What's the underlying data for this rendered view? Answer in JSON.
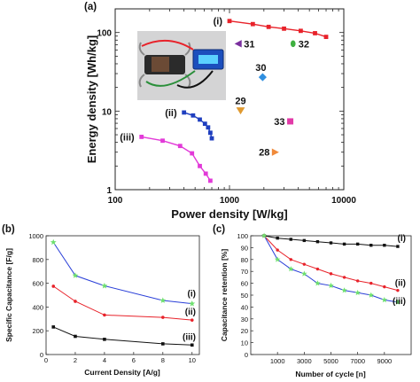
{
  "chart_data": [
    {
      "panel": "(a)",
      "type": "scatter",
      "xlabel": "Power density [W/kg]",
      "ylabel": "Energy density [Wh/kg]",
      "xscale": "log",
      "yscale": "log",
      "xlim": [
        100,
        10000
      ],
      "ylim": [
        1,
        200
      ],
      "xticks": [
        "100",
        "1000",
        "10000"
      ],
      "yticks": [
        "1",
        "10",
        "100"
      ],
      "colors": {
        "i": "#e8222a",
        "ii": "#1f3fbf",
        "iii": "#e23ad8"
      },
      "series": [
        {
          "name": "(i)",
          "color": "#e8222a",
          "marker": "square",
          "x": [
            1000,
            1600,
            2200,
            3000,
            4200,
            5600,
            7000
          ],
          "y": [
            140,
            128,
            118,
            112,
            105,
            98,
            88
          ]
        },
        {
          "name": "(ii)",
          "color": "#1f3fbf",
          "marker": "square",
          "x": [
            400,
            480,
            550,
            610,
            650,
            680,
            700
          ],
          "y": [
            9.6,
            8.8,
            7.8,
            6.9,
            6.2,
            5.3,
            4.5
          ]
        },
        {
          "name": "(iii)",
          "color": "#e23ad8",
          "marker": "square",
          "x": [
            170,
            260,
            370,
            470,
            550,
            620,
            680
          ],
          "y": [
            4.7,
            4.2,
            3.6,
            2.9,
            2.0,
            1.6,
            1.3
          ]
        }
      ],
      "references": [
        {
          "label": "31",
          "x": 1200,
          "y": 72,
          "marker": "triangle-left",
          "color": "#7a2f9e"
        },
        {
          "label": "32",
          "x": 3600,
          "y": 72,
          "marker": "ellipse",
          "color": "#3fb040"
        },
        {
          "label": "30",
          "x": 1950,
          "y": 27,
          "marker": "diamond",
          "color": "#2f8fe0"
        },
        {
          "label": "29",
          "x": 1250,
          "y": 10.2,
          "marker": "triangle-down",
          "color": "#e09a30"
        },
        {
          "label": "33",
          "x": 3400,
          "y": 7.4,
          "marker": "square",
          "color": "#e23aa8"
        },
        {
          "label": "28",
          "x": 2500,
          "y": 3.0,
          "marker": "triangle-right",
          "color": "#f08a3a"
        }
      ]
    },
    {
      "panel": "(b)",
      "type": "line",
      "xlabel": "Current Density [A/g]",
      "ylabel": "Specific Capacitance [F/g]",
      "xlim": [
        0,
        10.5
      ],
      "ylim": [
        0,
        1000
      ],
      "xticks": [
        "0",
        "2",
        "4",
        "6",
        "8",
        "10"
      ],
      "yticks": [
        "0",
        "200",
        "400",
        "600",
        "800",
        "1000"
      ],
      "x": [
        0.5,
        2,
        4,
        8,
        10
      ],
      "series": [
        {
          "name": "(i)",
          "color": "#2a3fd8",
          "marker_color": "#6ee06e",
          "values": [
            945,
            665,
            578,
            455,
            428
          ]
        },
        {
          "name": "(ii)",
          "color": "#e8222a",
          "marker_color": "#e8222a",
          "values": [
            575,
            448,
            333,
            313,
            290
          ]
        },
        {
          "name": "(iii)",
          "color": "#111111",
          "marker_color": "#111111",
          "values": [
            232,
            153,
            128,
            90,
            80
          ]
        }
      ]
    },
    {
      "panel": "(c)",
      "type": "line",
      "xlabel": "Number of cycle [n]",
      "ylabel": "Capacitance retention [%]",
      "xlim": [
        -1000,
        11000
      ],
      "ylim": [
        0,
        100
      ],
      "xticks": [
        "1000",
        "3000",
        "5000",
        "7000",
        "9000"
      ],
      "yticks": [
        "0",
        "10",
        "20",
        "30",
        "40",
        "50",
        "60",
        "70",
        "80",
        "90",
        "100"
      ],
      "x": [
        0,
        1000,
        2000,
        3000,
        4000,
        5000,
        6000,
        7000,
        8000,
        9000,
        10000
      ],
      "series": [
        {
          "name": "(i)",
          "color": "#111111",
          "marker_color": "#111111",
          "values": [
            100,
            98,
            97,
            96,
            95,
            94,
            93,
            93,
            92,
            92,
            91
          ]
        },
        {
          "name": "(ii)",
          "color": "#e8222a",
          "marker_color": "#e8222a",
          "values": [
            100,
            88,
            80,
            76,
            72,
            68,
            65,
            62,
            60,
            57,
            54
          ]
        },
        {
          "name": "(iii)",
          "color": "#2a3fd8",
          "marker_color": "#6ee06e",
          "values": [
            100,
            80,
            72,
            68,
            60,
            58,
            54,
            52,
            50,
            46,
            44
          ]
        }
      ]
    }
  ]
}
